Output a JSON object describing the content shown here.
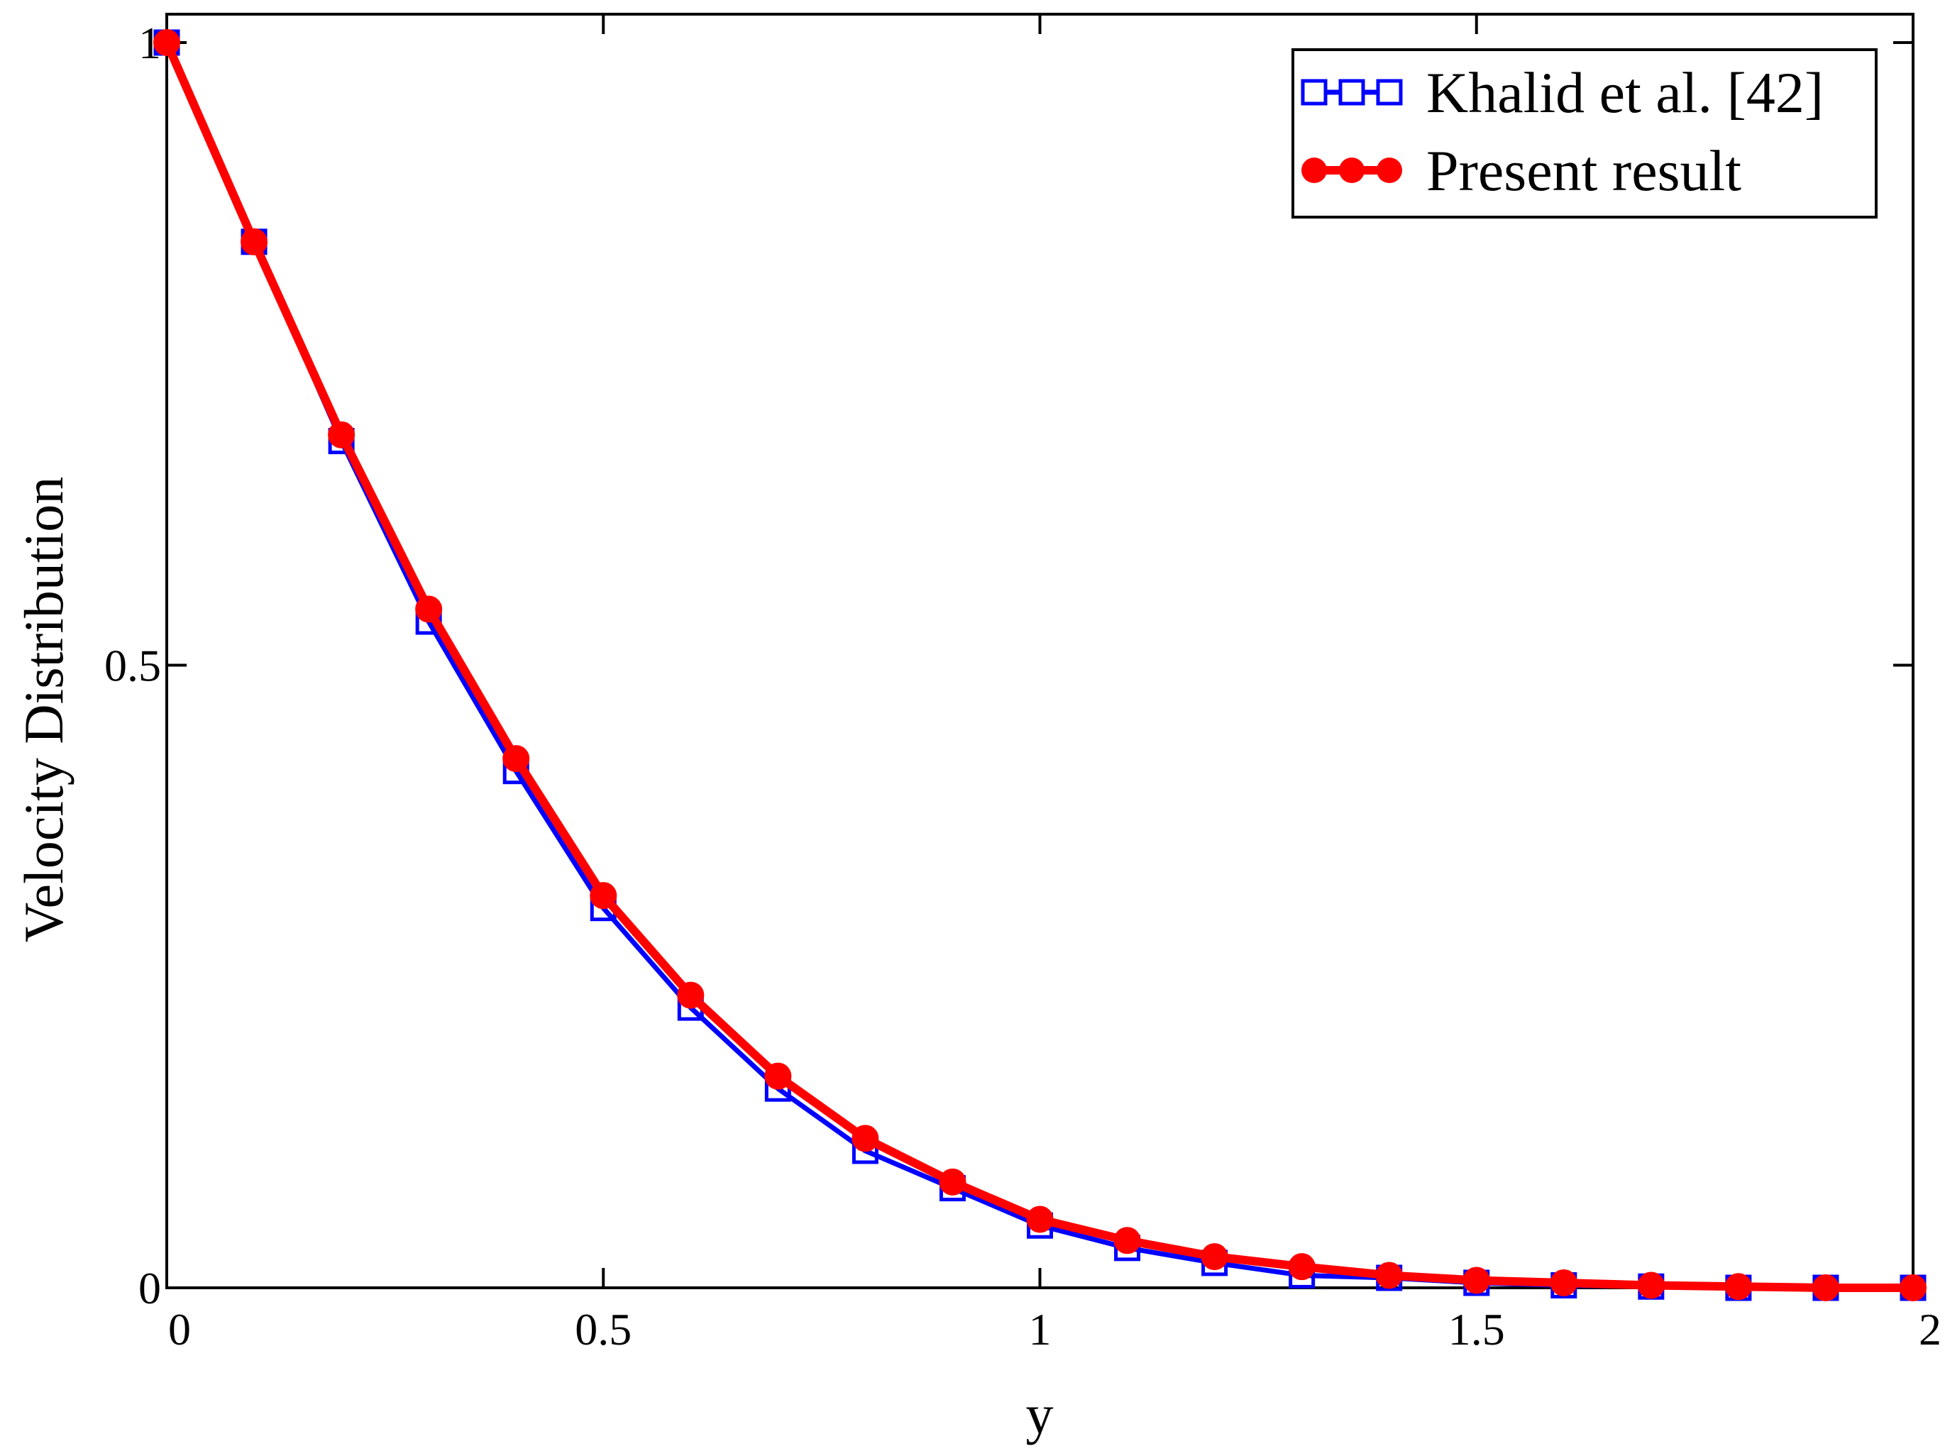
{
  "chart_data": {
    "type": "line",
    "title": "",
    "xlabel": "y",
    "ylabel": "Velocity  Distribution",
    "xlim": [
      0,
      2
    ],
    "ylim": [
      0,
      1
    ],
    "xticks": [
      "0",
      "0.5",
      "1",
      "1.5",
      "2"
    ],
    "yticks": [
      "0",
      "0.5",
      "1"
    ],
    "grid": false,
    "legend_position": "top-right",
    "x": [
      0,
      0.1,
      0.2,
      0.3,
      0.4,
      0.5,
      0.6,
      0.7,
      0.8,
      0.9,
      1.0,
      1.1,
      1.2,
      1.3,
      1.4,
      1.5,
      1.6,
      1.7,
      1.8,
      1.9,
      2.0
    ],
    "series": [
      {
        "name": "Khalid et al. [42]",
        "color": "#0000ff",
        "marker": "open-square",
        "values": [
          1.0,
          0.84,
          0.68,
          0.535,
          0.415,
          0.305,
          0.225,
          0.16,
          0.11,
          0.08,
          0.05,
          0.032,
          0.02,
          0.01,
          0.008,
          0.004,
          0.002,
          0.001,
          0.0,
          0.0,
          0.0
        ]
      },
      {
        "name": "Present result",
        "color": "#ff0000",
        "marker": "filled-circle",
        "values": [
          1.0,
          0.84,
          0.685,
          0.545,
          0.425,
          0.315,
          0.235,
          0.17,
          0.12,
          0.085,
          0.055,
          0.038,
          0.025,
          0.017,
          0.01,
          0.006,
          0.004,
          0.002,
          0.001,
          0.0,
          0.0
        ]
      }
    ]
  }
}
